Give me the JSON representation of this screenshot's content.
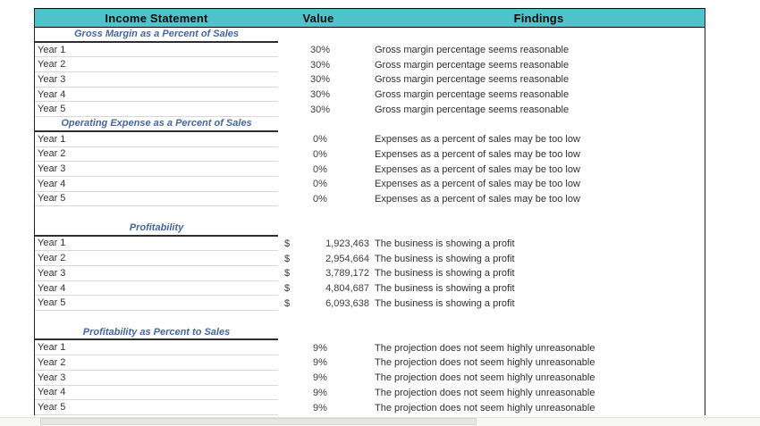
{
  "colors": {
    "header_bg": "#4EC3CA",
    "header_text": "#0a0a0a",
    "section_title": "#44669F",
    "grid_dark": "#2e2e2e",
    "grid_light": "#d8d8d8"
  },
  "header": {
    "columns": [
      "Income Statement",
      "Value",
      "Findings"
    ]
  },
  "sections": [
    {
      "title": "Gross Margin as a Percent of Sales",
      "rows": [
        {
          "label": "Year 1",
          "value": "30%",
          "finding": "Gross margin percentage seems reasonable"
        },
        {
          "label": "Year 2",
          "value": "30%",
          "finding": "Gross margin percentage seems reasonable"
        },
        {
          "label": "Year 3",
          "value": "30%",
          "finding": "Gross margin percentage seems reasonable"
        },
        {
          "label": "Year 4",
          "value": "30%",
          "finding": "Gross margin percentage seems reasonable"
        },
        {
          "label": "Year 5",
          "value": "30%",
          "finding": "Gross margin percentage seems reasonable"
        }
      ]
    },
    {
      "title": "Operating Expense as a Percent of Sales",
      "rows": [
        {
          "label": "Year 1",
          "value": "0%",
          "finding": "Expenses as a percent of sales may be too low"
        },
        {
          "label": "Year 2",
          "value": "0%",
          "finding": "Expenses as a percent of sales may be too low"
        },
        {
          "label": "Year 3",
          "value": "0%",
          "finding": "Expenses as a percent of sales may be too low"
        },
        {
          "label": "Year 4",
          "value": "0%",
          "finding": "Expenses as a percent of sales may be too low"
        },
        {
          "label": "Year 5",
          "value": "0%",
          "finding": "Expenses as a percent of sales may be too low"
        }
      ]
    },
    {
      "title": "Profitability",
      "rows": [
        {
          "label": "Year 1",
          "currency": "$",
          "value": "1,923,463",
          "finding": "The business is showing a profit"
        },
        {
          "label": "Year 2",
          "currency": "$",
          "value": "2,954,664",
          "finding": "The business is showing a profit"
        },
        {
          "label": "Year 3",
          "currency": "$",
          "value": "3,789,172",
          "finding": "The business is showing a profit"
        },
        {
          "label": "Year 4",
          "currency": "$",
          "value": "4,804,687",
          "finding": "The business is showing a profit"
        },
        {
          "label": "Year 5",
          "currency": "$",
          "value": "6,093,638",
          "finding": "The business is showing a profit"
        }
      ]
    },
    {
      "title": "Profitability as Percent to Sales",
      "rows": [
        {
          "label": "Year 1",
          "value": "9%",
          "finding": "The projection does not seem highly unreasonable"
        },
        {
          "label": "Year 2",
          "value": "9%",
          "finding": "The projection does not seem highly unreasonable"
        },
        {
          "label": "Year 3",
          "value": "9%",
          "finding": "The projection does not seem highly unreasonable"
        },
        {
          "label": "Year 4",
          "value": "9%",
          "finding": "The projection does not seem highly unreasonable"
        },
        {
          "label": "Year 5",
          "value": "9%",
          "finding": "The projection does not seem highly unreasonable"
        }
      ]
    }
  ]
}
